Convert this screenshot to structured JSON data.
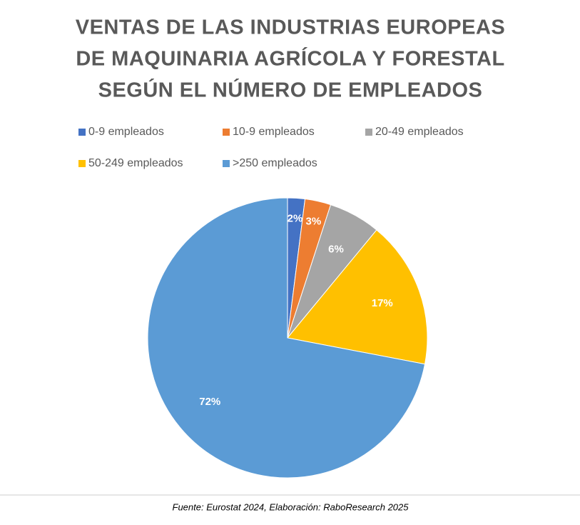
{
  "chart_data": {
    "type": "pie",
    "title": [
      "VENTAS DE LAS INDUSTRIAS EUROPEAS",
      "DE MAQUINARIA AGRÍCOLA Y FORESTAL",
      "SEGÚN EL NÚMERO DE EMPLEADOS"
    ],
    "categories": [
      "0-9 empleados",
      "10-9 empleados",
      "20-49 empleados",
      "50-249 empleados",
      ">250 empleados"
    ],
    "values": [
      2,
      3,
      6,
      17,
      72
    ],
    "value_labels": [
      "2%",
      "3%",
      "6%",
      "17%",
      "72%"
    ],
    "colors": [
      "#4472c4",
      "#ed7d31",
      "#a5a5a5",
      "#ffc000",
      "#5b9bd5"
    ],
    "legend": "top"
  },
  "source": "Fuente: Eurostat 2024, Elaboración: RaboResearch 2025"
}
